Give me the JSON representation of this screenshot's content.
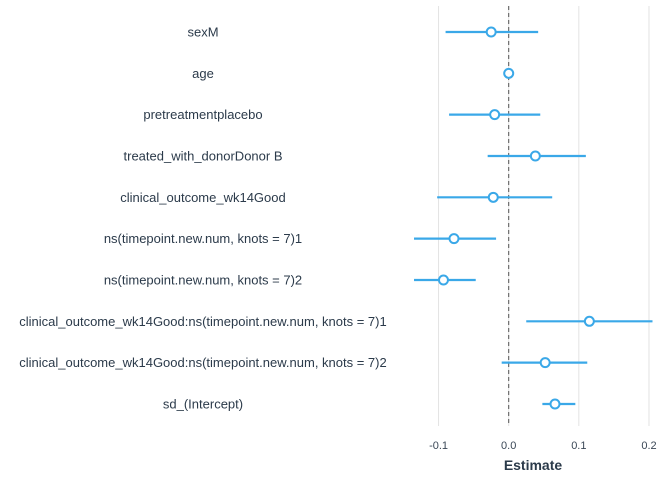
{
  "chart_data": {
    "type": "scatter",
    "subtype": "coefficient-plot",
    "xlabel": "Estimate",
    "ylabel": "",
    "xlim": [
      -0.145,
      0.21
    ],
    "x_ticks": [
      -0.1,
      0.0,
      0.1,
      0.2
    ],
    "x_tick_labels": [
      "-0.1",
      "0.0",
      "0.1",
      "0.2"
    ],
    "reference_line": 0,
    "grid": "vertical",
    "color": "#3aa8e8",
    "terms": [
      {
        "label": "sexM",
        "estimate": -0.025,
        "low": -0.09,
        "high": 0.042
      },
      {
        "label": "age",
        "estimate": 0.0,
        "low": -0.002,
        "high": 0.002
      },
      {
        "label": "pretreatmentplacebo",
        "estimate": -0.02,
        "low": -0.085,
        "high": 0.045
      },
      {
        "label": "treated_with_donorDonor B",
        "estimate": 0.038,
        "low": -0.03,
        "high": 0.11
      },
      {
        "label": "clinical_outcome_wk14Good",
        "estimate": -0.022,
        "low": -0.102,
        "high": 0.062
      },
      {
        "label": "ns(timepoint.new.num, knots = 7)1",
        "estimate": -0.078,
        "low": -0.135,
        "high": -0.018
      },
      {
        "label": "ns(timepoint.new.num, knots = 7)2",
        "estimate": -0.093,
        "low": -0.135,
        "high": -0.047
      },
      {
        "label": "clinical_outcome_wk14Good:ns(timepoint.new.num, knots = 7)1",
        "estimate": 0.115,
        "low": 0.025,
        "high": 0.205
      },
      {
        "label": "clinical_outcome_wk14Good:ns(timepoint.new.num, knots = 7)2",
        "estimate": 0.052,
        "low": -0.01,
        "high": 0.112
      },
      {
        "label": "sd_(Intercept)",
        "estimate": 0.066,
        "low": 0.048,
        "high": 0.095
      }
    ]
  }
}
